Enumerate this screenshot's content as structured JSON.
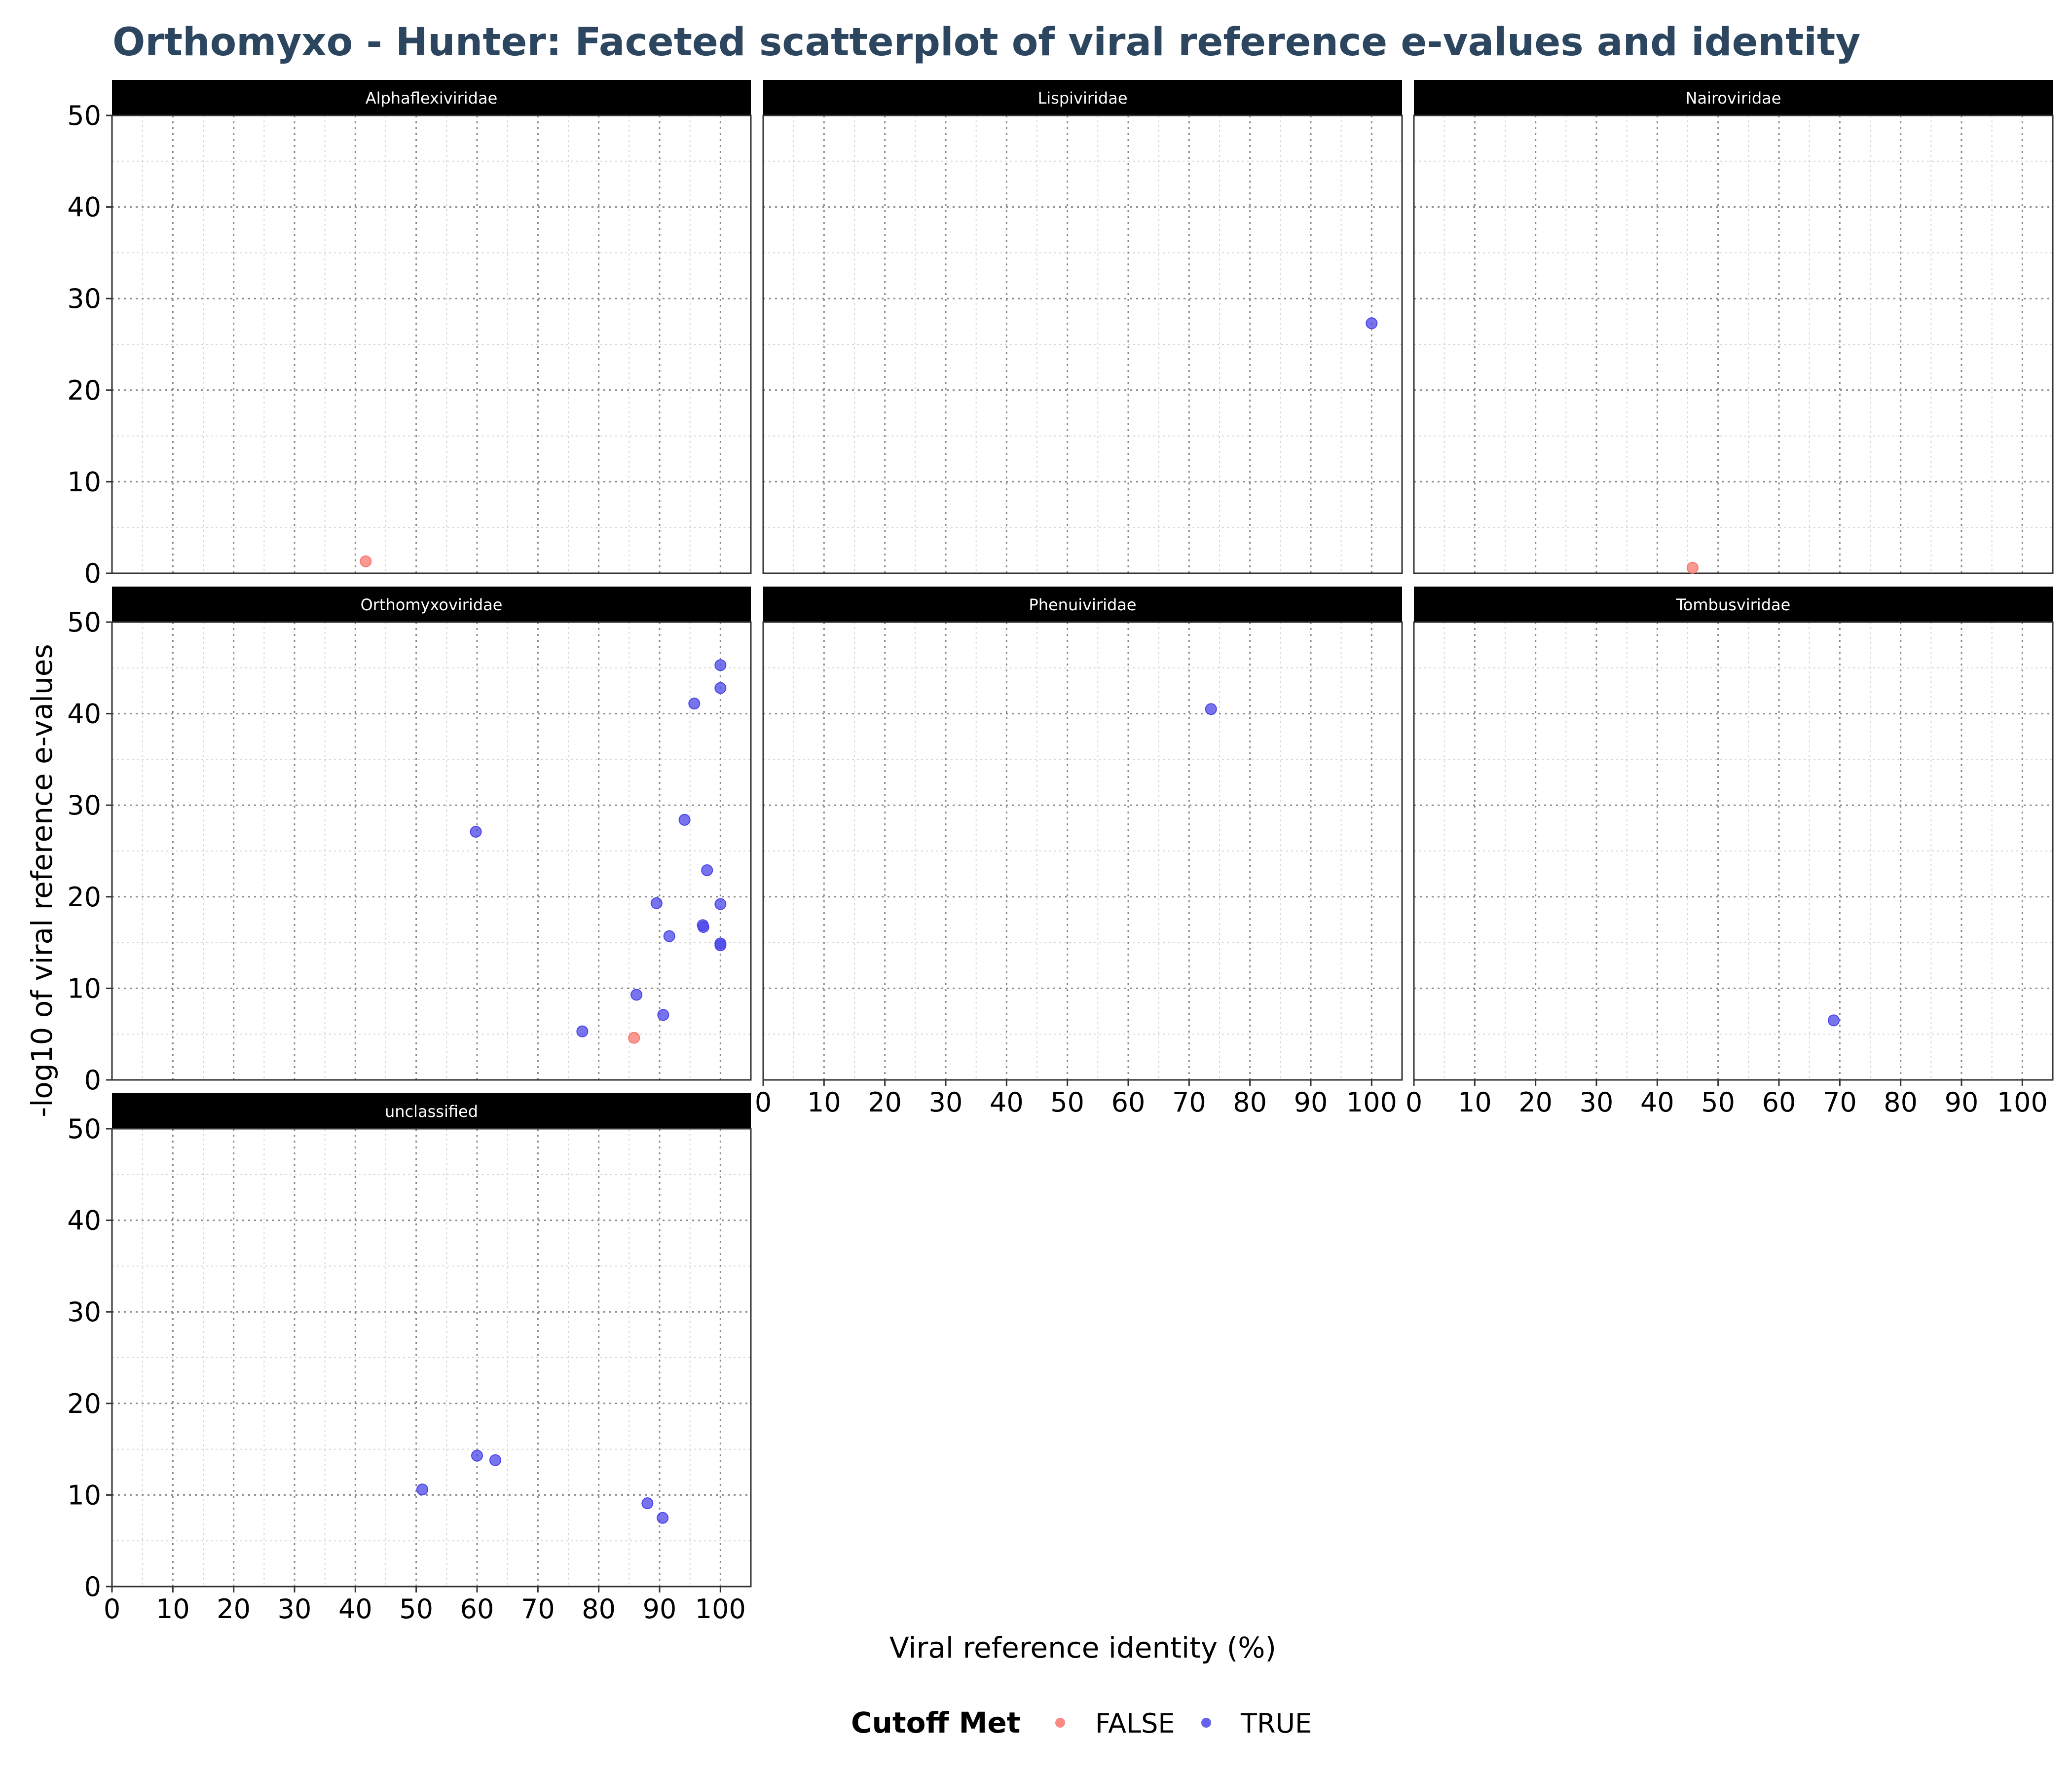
{
  "chart_data": {
    "type": "scatter",
    "title": "Orthomyxo - Hunter: Faceted scatterplot of viral reference e-values and identity",
    "xlabel": "Viral reference identity (%)",
    "ylabel": "-log10 of viral reference e-values",
    "xlim": [
      0,
      105
    ],
    "ylim": [
      0,
      50
    ],
    "x_ticks": [
      0,
      10,
      20,
      30,
      40,
      50,
      60,
      70,
      80,
      90,
      100
    ],
    "y_ticks": [
      0,
      10,
      20,
      30,
      40,
      50
    ],
    "grid": true,
    "legend": {
      "title": "Cutoff Met",
      "placement": "bottom",
      "entries": [
        {
          "label": "FALSE",
          "color": "#f8766d"
        },
        {
          "label": "TRUE",
          "color": "#4b46e8"
        }
      ]
    },
    "facets": [
      {
        "name": "Alphaflexiviridae",
        "points": [
          {
            "x": 41.7,
            "y": 1.3,
            "cutoff": "FALSE"
          }
        ]
      },
      {
        "name": "Lispiviridae",
        "points": [
          {
            "x": 100,
            "y": 27.3,
            "cutoff": "TRUE"
          }
        ]
      },
      {
        "name": "Nairoviridae",
        "points": [
          {
            "x": 45.8,
            "y": 0.6,
            "cutoff": "FALSE"
          }
        ]
      },
      {
        "name": "Orthomyxoviridae",
        "points": [
          {
            "x": 100,
            "y": 45.3,
            "cutoff": "TRUE"
          },
          {
            "x": 100,
            "y": 42.8,
            "cutoff": "TRUE"
          },
          {
            "x": 95.7,
            "y": 41.1,
            "cutoff": "TRUE"
          },
          {
            "x": 59.8,
            "y": 27.1,
            "cutoff": "TRUE"
          },
          {
            "x": 94.1,
            "y": 28.4,
            "cutoff": "TRUE"
          },
          {
            "x": 97.8,
            "y": 22.9,
            "cutoff": "TRUE"
          },
          {
            "x": 89.5,
            "y": 19.3,
            "cutoff": "TRUE"
          },
          {
            "x": 100,
            "y": 19.2,
            "cutoff": "TRUE"
          },
          {
            "x": 97.1,
            "y": 16.9,
            "cutoff": "TRUE"
          },
          {
            "x": 97.2,
            "y": 16.7,
            "cutoff": "TRUE"
          },
          {
            "x": 91.6,
            "y": 15.7,
            "cutoff": "TRUE"
          },
          {
            "x": 100,
            "y": 14.9,
            "cutoff": "TRUE"
          },
          {
            "x": 100,
            "y": 14.7,
            "cutoff": "TRUE"
          },
          {
            "x": 86.2,
            "y": 9.3,
            "cutoff": "TRUE"
          },
          {
            "x": 90.6,
            "y": 7.1,
            "cutoff": "TRUE"
          },
          {
            "x": 77.3,
            "y": 5.3,
            "cutoff": "TRUE"
          },
          {
            "x": 85.8,
            "y": 4.6,
            "cutoff": "FALSE"
          }
        ]
      },
      {
        "name": "Phenuiviridae",
        "points": [
          {
            "x": 73.6,
            "y": 40.5,
            "cutoff": "TRUE"
          }
        ]
      },
      {
        "name": "Tombusviridae",
        "points": [
          {
            "x": 69.0,
            "y": 6.5,
            "cutoff": "TRUE"
          }
        ]
      },
      {
        "name": "unclassified",
        "points": [
          {
            "x": 51.0,
            "y": 10.6,
            "cutoff": "TRUE"
          },
          {
            "x": 60.0,
            "y": 14.3,
            "cutoff": "TRUE"
          },
          {
            "x": 63.0,
            "y": 13.8,
            "cutoff": "TRUE"
          },
          {
            "x": 88.0,
            "y": 9.1,
            "cutoff": "TRUE"
          },
          {
            "x": 90.5,
            "y": 7.5,
            "cutoff": "TRUE"
          }
        ]
      }
    ]
  }
}
